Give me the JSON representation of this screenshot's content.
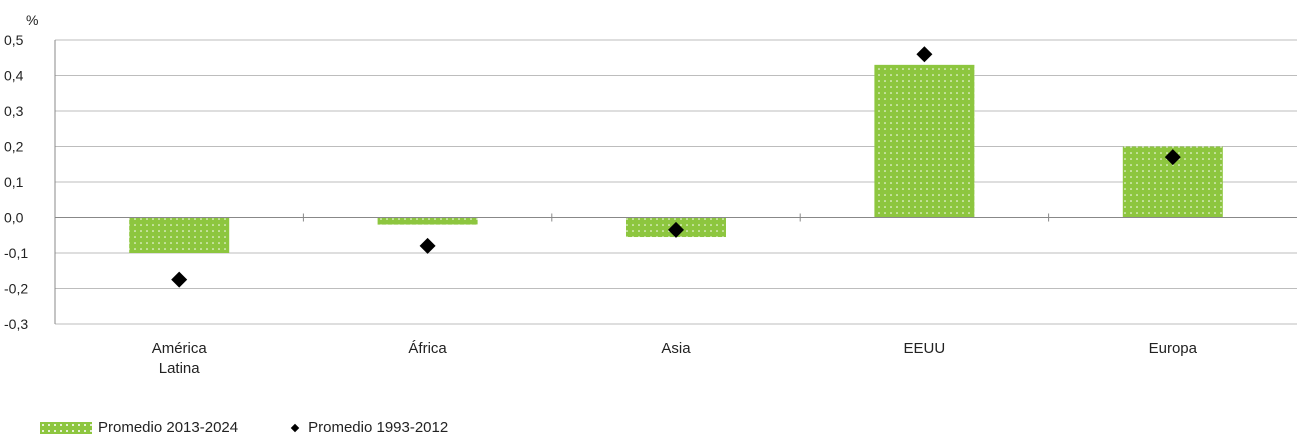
{
  "chart_data": {
    "type": "bar",
    "ylabel": "%",
    "categories": [
      "América Latina",
      "África",
      "Asia",
      "EEUU",
      "Europa"
    ],
    "category_lines": [
      [
        "América",
        "Latina"
      ],
      [
        "África"
      ],
      [
        "Asia"
      ],
      [
        "EEUU"
      ],
      [
        "Europa"
      ]
    ],
    "ylim": [
      -0.3,
      0.5
    ],
    "yticks": [
      "0,5",
      "0,4",
      "0,3",
      "0,2",
      "0,1",
      "0,0",
      "-0,1",
      "-0,2",
      "-0,3"
    ],
    "grid": true,
    "legend_position": "bottom-left",
    "series": [
      {
        "name": "Promedio 2013-2024",
        "type": "bar",
        "color": "#8dc63f",
        "values": [
          -0.1,
          -0.02,
          -0.055,
          0.43,
          0.2
        ]
      },
      {
        "name": "Promedio 1993-2012",
        "type": "marker",
        "color": "#000000",
        "values": [
          -0.175,
          -0.08,
          -0.035,
          0.46,
          0.17
        ]
      }
    ]
  }
}
